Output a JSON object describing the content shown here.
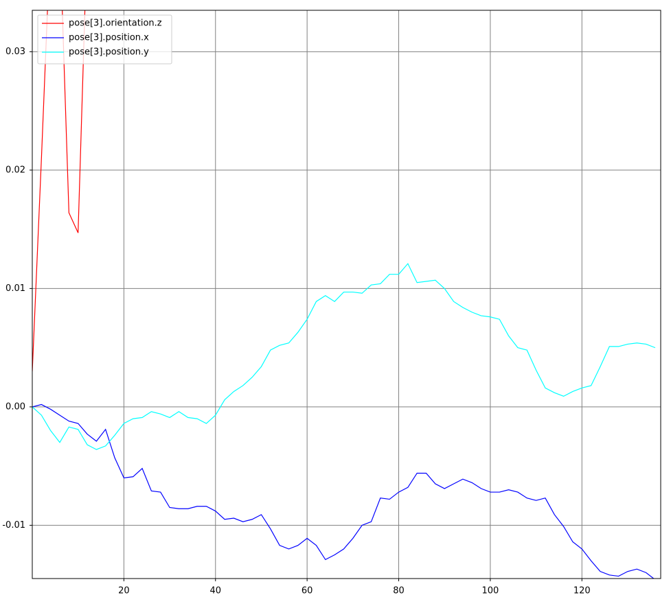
{
  "chart_data": {
    "type": "line",
    "x": [
      0,
      2,
      4,
      6,
      8,
      10,
      12,
      14,
      16,
      18,
      20,
      22,
      24,
      26,
      28,
      30,
      32,
      34,
      36,
      38,
      40,
      42,
      44,
      46,
      48,
      50,
      52,
      54,
      56,
      58,
      60,
      62,
      64,
      66,
      68,
      70,
      72,
      74,
      76,
      78,
      80,
      82,
      84,
      86,
      88,
      90,
      92,
      94,
      96,
      98,
      100,
      102,
      104,
      106,
      108,
      110,
      112,
      114,
      116,
      118,
      120,
      122,
      124,
      126,
      128,
      130,
      132,
      134,
      136
    ],
    "series": [
      {
        "name": "pose[3].orientation.z",
        "color": "#ff0000",
        "values": [
          0.003,
          0.021,
          0.04,
          0.04,
          0.0164,
          0.0147,
          0.04,
          null,
          null,
          null,
          null,
          null,
          null,
          null,
          null,
          null,
          null,
          null,
          null,
          null,
          null,
          null,
          null,
          null,
          null,
          null,
          null,
          null,
          null,
          null,
          null,
          null,
          null,
          null,
          null,
          null,
          null,
          null,
          null,
          null,
          null,
          null,
          null,
          null,
          null,
          null,
          null,
          null,
          null,
          null,
          null,
          null,
          null,
          null,
          null,
          null,
          null,
          null,
          null,
          null,
          null,
          null,
          null,
          null,
          null,
          null,
          null,
          null,
          null
        ]
      },
      {
        "name": "pose[3].position.x",
        "color": "#0000ff",
        "values": [
          0.0,
          0.0002,
          -0.0002,
          -0.0007,
          -0.0012,
          -0.0014,
          -0.0023,
          -0.0029,
          -0.0019,
          -0.0043,
          -0.006,
          -0.0059,
          -0.0052,
          -0.0071,
          -0.0072,
          -0.0085,
          -0.0086,
          -0.0086,
          -0.0084,
          -0.0084,
          -0.0088,
          -0.0095,
          -0.0094,
          -0.0097,
          -0.0095,
          -0.0091,
          -0.0103,
          -0.0117,
          -0.012,
          -0.0117,
          -0.0111,
          -0.0117,
          -0.0129,
          -0.0125,
          -0.012,
          -0.0111,
          -0.01,
          -0.0097,
          -0.0077,
          -0.0078,
          -0.0072,
          -0.0068,
          -0.0056,
          -0.0056,
          -0.0065,
          -0.0069,
          -0.0065,
          -0.0061,
          -0.0064,
          -0.0069,
          -0.0072,
          -0.0072,
          -0.007,
          -0.0072,
          -0.0077,
          -0.0079,
          -0.0077,
          -0.0091,
          -0.0101,
          -0.0114,
          -0.012,
          -0.013,
          -0.0139,
          -0.0142,
          -0.0143,
          -0.0139,
          -0.0137,
          -0.014,
          -0.0146
        ]
      },
      {
        "name": "pose[3].position.y",
        "color": "#00ffff",
        "values": [
          0.0,
          -0.0007,
          -0.002,
          -0.003,
          -0.0017,
          -0.0019,
          -0.0032,
          -0.0036,
          -0.0033,
          -0.0024,
          -0.0014,
          -0.001,
          -0.0009,
          -0.0004,
          -0.0006,
          -0.0009,
          -0.0004,
          -0.0009,
          -0.001,
          -0.0014,
          -0.0007,
          0.0006,
          0.0013,
          0.0018,
          0.0025,
          0.0034,
          0.0048,
          0.0052,
          0.0054,
          0.0063,
          0.0074,
          0.0089,
          0.0094,
          0.0089,
          0.0097,
          0.0097,
          0.0096,
          0.0103,
          0.0104,
          0.0112,
          0.0112,
          0.0121,
          0.0105,
          0.0106,
          0.0107,
          0.01,
          0.0089,
          0.0084,
          0.008,
          0.0077,
          0.0076,
          0.0074,
          0.006,
          0.005,
          0.0048,
          0.0031,
          0.0016,
          0.0012,
          0.0009,
          0.0013,
          0.0016,
          0.0018,
          0.0034,
          0.0051,
          0.0051,
          0.0053,
          0.0054,
          0.0053,
          0.005
        ]
      }
    ],
    "xlim": [
      0,
      137.2
    ],
    "ylim": [
      -0.0145,
      0.0335
    ],
    "xticks": [
      20,
      40,
      60,
      80,
      100,
      120
    ],
    "yticks": [
      -0.01,
      {
        "value": 0,
        "label": "0.00"
      },
      0.01,
      0.02,
      0.03
    ],
    "grid": true,
    "legend": "upper left"
  }
}
